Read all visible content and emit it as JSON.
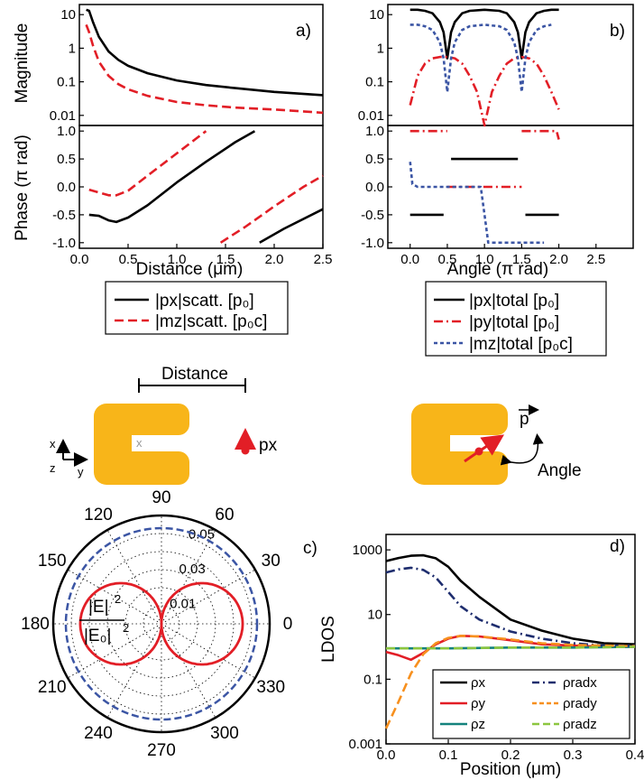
{
  "colors": {
    "black": "#000000",
    "red": "#e21e26",
    "blue": "#3b55a4",
    "navy": "#1e2d6e",
    "orange": "#f7901e",
    "teal": "#14827c",
    "green": "#8cc63f",
    "gold": "#f8b519",
    "gray": "#999999"
  },
  "panels": {
    "a": {
      "tag": "a)",
      "top_ylabel": "Magnitude",
      "bottom_ylabel": "Phase (π rad)",
      "xlabel": "Distance (μm)",
      "top_yticks": [
        "10",
        "1",
        "0.1",
        "0.01"
      ],
      "bottom_yticks": [
        "1.0",
        "0.5",
        "0.0",
        "-0.5",
        "-1.0"
      ],
      "xticks": [
        "0.0",
        "0.5",
        "1.0",
        "1.5",
        "2.0",
        "2.5"
      ],
      "legend": [
        "|px|scatt. [p₀]",
        "|mz|scatt. [p₀c]"
      ]
    },
    "b": {
      "tag": "b)",
      "xlabel": "Angle (π rad)",
      "xticks": [
        "0.0",
        "0.5",
        "1.0",
        "1.5",
        "2.0",
        "2.5"
      ],
      "top_yticks": [
        "10",
        "1",
        "0.1",
        "0.01"
      ],
      "bottom_yticks": [
        "1.0",
        "0.5",
        "0.0",
        "-0.5",
        "-1.0"
      ],
      "legend": [
        "|px|total [p₀]",
        "|py|total [p₀]",
        "|mz|total [p₀c]"
      ]
    },
    "schematic": {
      "distance_label": "Distance",
      "px_label": "px",
      "axis_x": "x",
      "axis_y": "y",
      "axis_z": "z",
      "origin_mark": "x",
      "p_label": "p",
      "angle_label": "Angle"
    },
    "c": {
      "tag": "c)",
      "angle_labels": [
        "90",
        "60",
        "30",
        "0",
        "330",
        "300",
        "270",
        "240",
        "210",
        "180",
        "150",
        "120"
      ],
      "radial_labels": [
        "0.05",
        "0.03",
        "0.01"
      ],
      "field_num": "|E|",
      "field_den": "|E₀|",
      "exp": "2"
    },
    "d": {
      "tag": "d)",
      "ylabel": "LDOS",
      "xlabel": "Position (μm)",
      "xticks": [
        "0.0",
        "0.1",
        "0.2",
        "0.3",
        "0.4"
      ],
      "yticks": [
        "1000",
        "10",
        "0.1",
        "0.001"
      ],
      "legend_left": [
        "ρx",
        "ρy",
        "ρz"
      ],
      "legend_right": [
        "ρradx",
        "ρrady",
        "ρradz"
      ]
    }
  },
  "chart_data": [
    {
      "type": "line",
      "panel": "a-top",
      "xlabel": "Distance (μm)",
      "ylabel": "Magnitude",
      "xlim": [
        0,
        2.5
      ],
      "ylim": [
        0.005,
        20
      ],
      "yscale": "log",
      "series": [
        {
          "name": "|px|scatt. [p₀]",
          "style": "solid",
          "color": "#000000",
          "x": [
            0.07,
            0.1,
            0.14,
            0.2,
            0.3,
            0.4,
            0.5,
            0.7,
            1.0,
            1.3,
            1.6,
            2.0,
            2.5
          ],
          "y": [
            14,
            13,
            6,
            2.2,
            0.8,
            0.45,
            0.3,
            0.18,
            0.11,
            0.08,
            0.065,
            0.05,
            0.04
          ]
        },
        {
          "name": "|mz|scatt. [p₀c]",
          "style": "dashed",
          "color": "#e21e26",
          "x": [
            0.07,
            0.1,
            0.14,
            0.2,
            0.3,
            0.4,
            0.5,
            0.7,
            1.0,
            1.3,
            1.6,
            2.0,
            2.5
          ],
          "y": [
            5,
            3,
            1.2,
            0.4,
            0.15,
            0.085,
            0.06,
            0.038,
            0.025,
            0.02,
            0.017,
            0.015,
            0.012
          ]
        }
      ]
    },
    {
      "type": "line",
      "panel": "a-bottom",
      "xlabel": "Distance (μm)",
      "ylabel": "Phase (π rad)",
      "xlim": [
        0,
        2.5
      ],
      "ylim": [
        -1.1,
        1.1
      ],
      "series": [
        {
          "name": "|px|scatt. [p₀]",
          "style": "solid",
          "color": "#000000",
          "segments": [
            {
              "x": [
                0.1,
                0.2,
                0.3,
                0.38,
                0.5,
                0.7,
                1.0,
                1.3,
                1.6,
                1.8
              ],
              "y": [
                -0.5,
                -0.52,
                -0.6,
                -0.63,
                -0.55,
                -0.33,
                0.08,
                0.45,
                0.8,
                1.0
              ]
            },
            {
              "x": [
                1.85,
                2.1,
                2.5
              ],
              "y": [
                -1.0,
                -0.75,
                -0.4
              ]
            }
          ]
        },
        {
          "name": "|mz|scatt. [p₀c]",
          "style": "dashed",
          "color": "#e21e26",
          "segments": [
            {
              "x": [
                0.1,
                0.2,
                0.3,
                0.38,
                0.5,
                0.7,
                1.0,
                1.3
              ],
              "y": [
                -0.05,
                -0.1,
                -0.15,
                -0.15,
                -0.07,
                0.2,
                0.6,
                1.0
              ]
            },
            {
              "x": [
                1.45,
                1.7,
                2.0,
                2.3,
                2.5
              ],
              "y": [
                -1.0,
                -0.72,
                -0.35,
                0.0,
                0.2
              ]
            }
          ]
        }
      ]
    },
    {
      "type": "line",
      "panel": "b-top",
      "xlabel": "Angle (π rad)",
      "ylabel": "Magnitude",
      "xlim": [
        -0.3,
        3.0
      ],
      "ylim": [
        0.005,
        20
      ],
      "yscale": "log",
      "series": [
        {
          "name": "|px|total [p₀]",
          "style": "solid",
          "color": "#000000",
          "x": [
            0,
            0.1,
            0.2,
            0.3,
            0.4,
            0.45,
            0.5,
            0.55,
            0.6,
            0.7,
            0.8,
            1.0,
            1.2,
            1.3,
            1.4,
            1.45,
            1.5,
            1.55,
            1.6,
            1.7,
            1.8,
            1.9,
            2.0
          ],
          "y": [
            14,
            14,
            13,
            11,
            6,
            3,
            0.5,
            3,
            6,
            11,
            13,
            14,
            13,
            11,
            6,
            3,
            0.5,
            3,
            6,
            11,
            13,
            14,
            14
          ]
        },
        {
          "name": "|py|total [p₀]",
          "style": "dashdot",
          "color": "#e21e26",
          "x": [
            0,
            0.1,
            0.2,
            0.3,
            0.4,
            0.5,
            0.6,
            0.7,
            0.8,
            0.9,
            0.97,
            1.0,
            1.03,
            1.1,
            1.2,
            1.3,
            1.4,
            1.5,
            1.6,
            1.7,
            1.8,
            1.9,
            2.0
          ],
          "y": [
            0.02,
            0.15,
            0.35,
            0.5,
            0.55,
            0.55,
            0.5,
            0.35,
            0.15,
            0.05,
            0.01,
            0.005,
            0.01,
            0.05,
            0.15,
            0.35,
            0.5,
            0.55,
            0.5,
            0.35,
            0.15,
            0.05,
            0.015
          ]
        },
        {
          "name": "|mz|total [p₀c]",
          "style": "dotted",
          "color": "#3b55a4",
          "x": [
            0,
            0.1,
            0.2,
            0.3,
            0.4,
            0.45,
            0.5,
            0.55,
            0.6,
            0.7,
            0.8,
            1.0,
            1.2,
            1.3,
            1.4,
            1.45,
            1.5,
            1.55,
            1.6,
            1.7,
            1.8,
            1.9
          ],
          "y": [
            5,
            5,
            4.5,
            3.5,
            1.5,
            0.5,
            0.05,
            0.5,
            1.5,
            3.5,
            4.5,
            5,
            4.5,
            3.5,
            1.5,
            0.5,
            0.05,
            0.5,
            1.5,
            3.5,
            4.5,
            5
          ]
        }
      ]
    },
    {
      "type": "line",
      "panel": "b-bottom",
      "xlabel": "Angle (π rad)",
      "ylabel": "Phase (π rad)",
      "xlim": [
        -0.3,
        3.0
      ],
      "ylim": [
        -1.1,
        1.1
      ],
      "series": [
        {
          "name": "|px|total [p₀]",
          "style": "solid",
          "color": "#000000",
          "segments": [
            {
              "x": [
                0,
                0.45
              ],
              "y": [
                -0.5,
                -0.5
              ]
            },
            {
              "x": [
                0.55,
                1.45
              ],
              "y": [
                0.5,
                0.5
              ]
            },
            {
              "x": [
                1.55,
                2.0
              ],
              "y": [
                -0.5,
                -0.5
              ]
            }
          ]
        },
        {
          "name": "|py|total [p₀]",
          "style": "dashdot",
          "color": "#e21e26",
          "segments": [
            {
              "x": [
                0,
                0.5
              ],
              "y": [
                1.0,
                1.0
              ]
            },
            {
              "x": [
                0.5,
                1.5
              ],
              "y": [
                0.0,
                0.0
              ]
            },
            {
              "x": [
                1.5,
                1.97,
                2.0
              ],
              "y": [
                1.0,
                1.0,
                0.85
              ]
            }
          ]
        },
        {
          "name": "|mz|total [p₀c]",
          "style": "dotted",
          "color": "#3b55a4",
          "segments": [
            {
              "x": [
                0,
                0.03,
                0.1,
                0.95,
                1.0,
                1.05,
                1.8
              ],
              "y": [
                0.45,
                0.05,
                0.0,
                0.0,
                -0.5,
                -1.0,
                -1.0
              ]
            }
          ]
        }
      ]
    },
    {
      "type": "line",
      "panel": "c",
      "subtype": "polar",
      "rlim": [
        0,
        0.06
      ],
      "radial_ticks": [
        0.01,
        0.03,
        0.05
      ],
      "series": [
        {
          "name": "|E|²/|E₀|² red",
          "style": "solid",
          "color": "#e21e26",
          "r_formula": "0.045*|cos(theta)|"
        },
        {
          "name": "|E|²/|E₀|² blue",
          "style": "dashed",
          "color": "#3b55a4",
          "r_constant": 0.053
        }
      ]
    },
    {
      "type": "line",
      "panel": "d",
      "xlabel": "Position (μm)",
      "ylabel": "LDOS",
      "xlim": [
        0,
        0.4
      ],
      "ylim": [
        0.001,
        3000
      ],
      "yscale": "log",
      "series": [
        {
          "name": "ρx",
          "style": "solid",
          "color": "#000000",
          "x": [
            0,
            0.02,
            0.04,
            0.06,
            0.08,
            0.1,
            0.12,
            0.15,
            0.2,
            0.25,
            0.3,
            0.35,
            0.4
          ],
          "y": [
            450,
            560,
            660,
            680,
            550,
            300,
            110,
            35,
            7,
            3.2,
            1.8,
            1.3,
            1.2
          ]
        },
        {
          "name": "ρy",
          "style": "solid",
          "color": "#e21e26",
          "x": [
            0,
            0.02,
            0.04,
            0.06,
            0.08,
            0.1,
            0.12,
            0.15,
            0.2,
            0.25,
            0.3,
            0.35,
            0.4
          ],
          "y": [
            0.7,
            0.55,
            0.4,
            0.65,
            1.2,
            1.8,
            2.2,
            2.1,
            1.6,
            1.2,
            1.1,
            1.0,
            1.0
          ]
        },
        {
          "name": "ρz",
          "style": "solid",
          "color": "#14827c",
          "x": [
            0,
            0.1,
            0.2,
            0.3,
            0.4
          ],
          "y": [
            0.9,
            0.9,
            0.95,
            0.95,
            1.0
          ]
        },
        {
          "name": "ρradx",
          "style": "dashdot",
          "color": "#1e2d6e",
          "x": [
            0,
            0.02,
            0.04,
            0.06,
            0.08,
            0.1,
            0.12,
            0.15,
            0.2,
            0.25,
            0.3,
            0.35,
            0.4
          ],
          "y": [
            200,
            250,
            280,
            240,
            140,
            50,
            18,
            7,
            3,
            1.8,
            1.3,
            1.1,
            1.1
          ]
        },
        {
          "name": "ρrady",
          "style": "dashed",
          "color": "#f7901e",
          "x": [
            0,
            0.02,
            0.04,
            0.06,
            0.08,
            0.1,
            0.12,
            0.15,
            0.2,
            0.25,
            0.3,
            0.35,
            0.4
          ],
          "y": [
            0.003,
            0.02,
            0.15,
            0.6,
            1.3,
            1.9,
            2.2,
            2.1,
            1.7,
            1.3,
            1.15,
            1.1,
            1.05
          ]
        },
        {
          "name": "ρradz",
          "style": "dashed",
          "color": "#8cc63f",
          "x": [
            0,
            0.1,
            0.2,
            0.3,
            0.4
          ],
          "y": [
            0.9,
            0.9,
            0.95,
            0.95,
            1.0
          ]
        }
      ]
    }
  ]
}
